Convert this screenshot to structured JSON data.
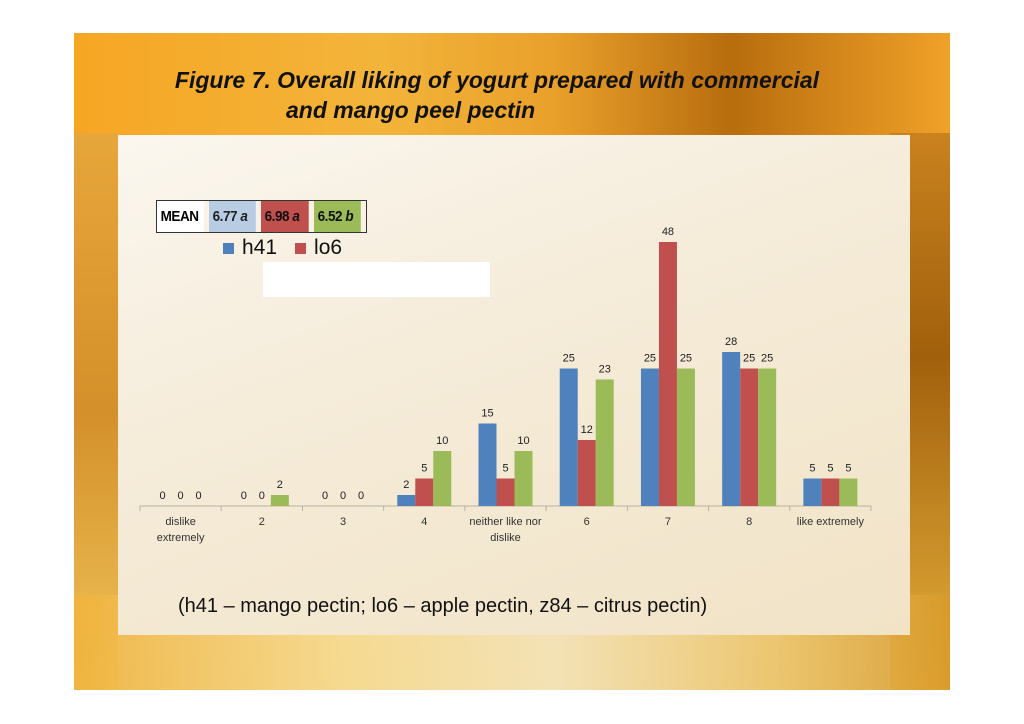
{
  "slide": {
    "title_line1": "Figure 7. Overall liking of yogurt prepared with commercial",
    "title_line2": "and mango peel pectin",
    "footnote": "(h41 – mango pectin; lo6 – apple pectin, z84 – citrus pectin)",
    "colors": {
      "h41": "#4f81bd",
      "lo6": "#c0504d",
      "z84": "#9bbb59"
    }
  },
  "mean_table": {
    "label": "MEAN",
    "values": [
      "6.77 a",
      "6.98 a",
      "6.52 b"
    ]
  },
  "chart_data": {
    "type": "bar",
    "categories": [
      "dislike extremely",
      "2",
      "3",
      "4",
      "neither like nor dislike",
      "6",
      "7",
      "8",
      "like extremely"
    ],
    "series": [
      {
        "name": "h41",
        "values": [
          0,
          0,
          0,
          2,
          15,
          25,
          25,
          28,
          5
        ]
      },
      {
        "name": "lo6",
        "values": [
          0,
          0,
          0,
          5,
          5,
          12,
          48,
          25,
          5
        ]
      },
      {
        "name": "",
        "values": [
          0,
          2,
          0,
          10,
          10,
          23,
          25,
          25,
          5
        ]
      }
    ],
    "ylim": [
      0,
      50
    ],
    "grid": false,
    "legend": "top-left",
    "xlabel": "",
    "ylabel": "",
    "title": ""
  }
}
